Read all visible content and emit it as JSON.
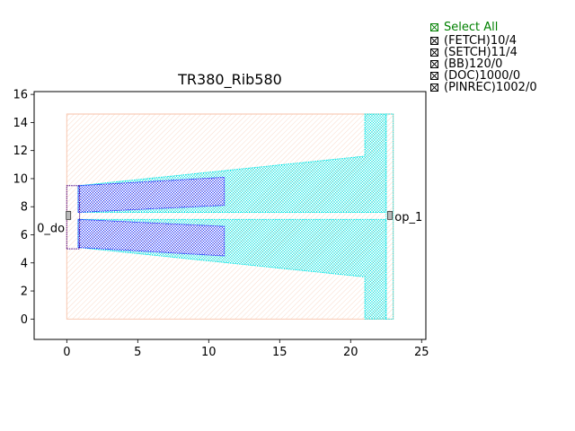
{
  "chart_data": {
    "type": "layout",
    "title": "TR380_Rib580",
    "xlim": [
      -2.3,
      25.3
    ],
    "ylim": [
      -1.45,
      16.2
    ],
    "x_ticks": [
      0,
      5,
      10,
      15,
      20,
      25
    ],
    "y_ticks": [
      0,
      2,
      4,
      6,
      8,
      10,
      12,
      14,
      16
    ],
    "polygons": [
      {
        "layer": "(DOC)1000/0",
        "color": "#f7c2a8",
        "hatch": "fine",
        "points": [
          [
            0,
            0
          ],
          [
            23,
            0
          ],
          [
            23,
            14.6
          ],
          [
            0,
            14.6
          ]
        ]
      },
      {
        "layer": "(SETCH)11/4",
        "color": "#00e5e5",
        "hatch": "dense",
        "points": [
          [
            0.8,
            7.6
          ],
          [
            22.5,
            7.6
          ],
          [
            22.5,
            14.6
          ],
          [
            21,
            14.6
          ],
          [
            21,
            11.6
          ],
          [
            0.8,
            9.5
          ]
        ]
      },
      {
        "layer": "(SETCH)11/4",
        "color": "#00e5e5",
        "hatch": "dense",
        "points": [
          [
            0.8,
            5.1
          ],
          [
            21,
            3
          ],
          [
            21,
            0
          ],
          [
            22.5,
            0
          ],
          [
            22.5,
            7.1
          ],
          [
            0.8,
            7.1
          ]
        ]
      },
      {
        "layer": "(FETCH)10/4",
        "color": "#1a1aff",
        "hatch": "dense",
        "points": [
          [
            0.8,
            7.6
          ],
          [
            11.1,
            8.1
          ],
          [
            11.1,
            10.1
          ],
          [
            0.8,
            9.5
          ]
        ]
      },
      {
        "layer": "(FETCH)10/4",
        "color": "#1a1aff",
        "hatch": "dense",
        "points": [
          [
            0.8,
            5.1
          ],
          [
            11.1,
            4.5
          ],
          [
            11.1,
            6.6
          ],
          [
            0.8,
            7.1
          ]
        ]
      },
      {
        "layer": "(BB)120/0",
        "color": "#4b0082",
        "hatch": "none",
        "points": [
          [
            0,
            5
          ],
          [
            0.9,
            5
          ],
          [
            0.9,
            9.5
          ],
          [
            0,
            9.5
          ]
        ]
      },
      {
        "layer": "(PINREC)1002/0",
        "color": "#00e5e5",
        "hatch": "none",
        "points": [
          [
            22.5,
            0
          ],
          [
            23,
            0
          ],
          [
            23,
            14.6
          ],
          [
            22.5,
            14.6
          ]
        ]
      }
    ],
    "ports": [
      {
        "name": "0_do",
        "x": 0.15,
        "y": 7.35,
        "label_x": -2.1,
        "label_y": 6.5
      },
      {
        "name": "op_1",
        "x": 22.8,
        "y": 7.35,
        "label_x": 23.1,
        "label_y": 7.3
      }
    ]
  },
  "layer_panel": {
    "select_all": "Select All",
    "layers": [
      "(FETCH)10/4",
      "(SETCH)11/4",
      "(BB)120/0",
      "(DOC)1000/0",
      "(PINREC)1002/0"
    ]
  }
}
